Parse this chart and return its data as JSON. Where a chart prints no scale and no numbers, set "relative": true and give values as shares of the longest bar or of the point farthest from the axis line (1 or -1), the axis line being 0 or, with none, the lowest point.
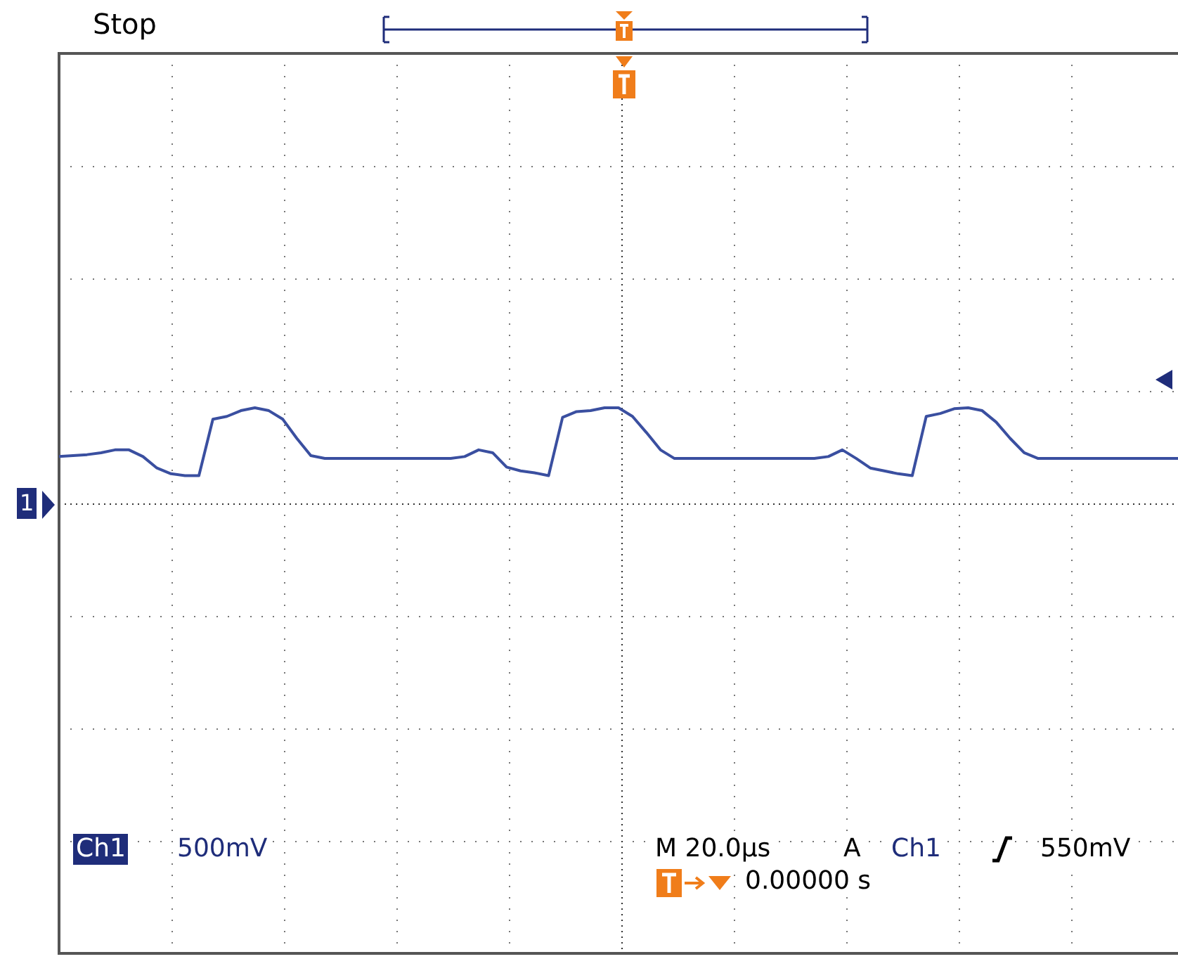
{
  "chart_data": {
    "type": "line",
    "relative": true,
    "grid": true,
    "marker": "none",
    "line_style": "solid",
    "categories": [
      null,
      null,
      null,
      null,
      null,
      null,
      null,
      null,
      null,
      null,
      null,
      null,
      null,
      null,
      null,
      null,
      null,
      null,
      null,
      null,
      null,
      null,
      null,
      null,
      null,
      null,
      null,
      null,
      null,
      null,
      null,
      null,
      null,
      null,
      null,
      null,
      null,
      null,
      null,
      null,
      null,
      null,
      null,
      null,
      null,
      null,
      null,
      null,
      null,
      null,
      null,
      null,
      null,
      null,
      null,
      null,
      null,
      null,
      null,
      null,
      null,
      null,
      null,
      null,
      null,
      null,
      null,
      null,
      null,
      null,
      null,
      null,
      null,
      null,
      null,
      null,
      null,
      null,
      null,
      null,
      null
    ],
    "series": [
      {
        "color": "#3a4fa0",
        "values": [
          0.49,
          0.5,
          0.51,
          0.53,
          0.56,
          0.56,
          0.49,
          0.37,
          0.31,
          0.29,
          0.29,
          0.88,
          0.91,
          0.97,
          1.0,
          0.97,
          0.88,
          0.68,
          0.5,
          0.47,
          0.47,
          0.47,
          0.47,
          0.47,
          0.47,
          0.47,
          0.47,
          0.47,
          0.47,
          0.49,
          0.56,
          0.53,
          0.38,
          0.34,
          0.32,
          0.29,
          0.9,
          0.96,
          0.97,
          1.0,
          1.0,
          0.91,
          0.74,
          0.56,
          0.47,
          0.47,
          0.47,
          0.47,
          0.47,
          0.47,
          0.47,
          0.47,
          0.47,
          0.47,
          0.47,
          0.49,
          0.56,
          0.47,
          0.37,
          0.34,
          0.31,
          0.29,
          0.91,
          0.94,
          0.99,
          1.0,
          0.97,
          0.85,
          0.68,
          0.53,
          0.47,
          0.47,
          0.47,
          0.47,
          0.47,
          0.47,
          0.47,
          0.47,
          0.47,
          0.47,
          0.47
        ]
      }
    ],
    "annotations": [
      "Stop",
      "1",
      "Ch1",
      "500mV",
      "M 20.0µs",
      "A",
      "Ch1",
      "550mV",
      "0.00000 s"
    ]
  }
}
